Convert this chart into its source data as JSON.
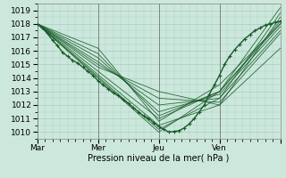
{
  "xlabel": "Pression niveau de la mer( hPa )",
  "xlim": [
    0,
    96
  ],
  "ylim": [
    1009.5,
    1019.5
  ],
  "yticks": [
    1010,
    1011,
    1012,
    1013,
    1014,
    1015,
    1016,
    1017,
    1018,
    1019
  ],
  "xtick_positions": [
    0,
    24,
    48,
    72,
    96
  ],
  "xtick_labels": [
    "Mar",
    "Mer",
    "Jeu",
    "Ven",
    ""
  ],
  "bg_color": "#cce8dd",
  "grid_color": "#aaccbb",
  "line_color": "#1a5c2a",
  "main_line": {
    "x": [
      0,
      2,
      4,
      6,
      8,
      10,
      12,
      14,
      16,
      18,
      20,
      22,
      24,
      26,
      28,
      30,
      32,
      34,
      36,
      38,
      40,
      42,
      44,
      46,
      48,
      50,
      52,
      54,
      56,
      58,
      60,
      62,
      64,
      66,
      68,
      70,
      72,
      74,
      76,
      78,
      80,
      82,
      84,
      86,
      88,
      90,
      92,
      94,
      96
    ],
    "y": [
      1018.0,
      1017.7,
      1017.3,
      1016.8,
      1016.4,
      1015.9,
      1015.6,
      1015.3,
      1015.1,
      1014.8,
      1014.5,
      1014.2,
      1013.8,
      1013.5,
      1013.2,
      1012.9,
      1012.7,
      1012.4,
      1012.1,
      1011.8,
      1011.5,
      1011.2,
      1011.0,
      1010.7,
      1010.4,
      1010.2,
      1010.0,
      1010.05,
      1010.1,
      1010.3,
      1010.6,
      1011.0,
      1011.5,
      1012.0,
      1012.8,
      1013.5,
      1014.2,
      1015.0,
      1015.6,
      1016.1,
      1016.5,
      1016.9,
      1017.2,
      1017.5,
      1017.7,
      1017.9,
      1018.0,
      1018.1,
      1018.2
    ]
  },
  "ensemble_lines": [
    {
      "x": [
        0,
        48,
        72,
        96
      ],
      "y": [
        1018.0,
        1010.0,
        1013.0,
        1019.2
      ]
    },
    {
      "x": [
        0,
        48,
        72,
        96
      ],
      "y": [
        1018.0,
        1010.2,
        1012.5,
        1018.8
      ]
    },
    {
      "x": [
        0,
        48,
        72,
        96
      ],
      "y": [
        1018.0,
        1010.5,
        1012.0,
        1018.5
      ]
    },
    {
      "x": [
        0,
        48,
        72,
        96
      ],
      "y": [
        1018.0,
        1011.0,
        1013.0,
        1018.2
      ]
    },
    {
      "x": [
        0,
        24,
        48,
        72,
        96
      ],
      "y": [
        1018.0,
        1016.2,
        1010.8,
        1013.5,
        1018.0
      ]
    },
    {
      "x": [
        0,
        24,
        48,
        72,
        96
      ],
      "y": [
        1018.0,
        1015.8,
        1011.2,
        1013.0,
        1018.0
      ]
    },
    {
      "x": [
        0,
        24,
        48,
        72,
        96
      ],
      "y": [
        1018.0,
        1015.5,
        1011.5,
        1012.8,
        1017.8
      ]
    },
    {
      "x": [
        0,
        24,
        48,
        72,
        96
      ],
      "y": [
        1018.0,
        1015.2,
        1012.0,
        1012.5,
        1017.5
      ]
    },
    {
      "x": [
        0,
        24,
        48,
        72,
        96
      ],
      "y": [
        1018.0,
        1015.0,
        1012.5,
        1012.2,
        1017.3
      ]
    },
    {
      "x": [
        0,
        24,
        48,
        72,
        96
      ],
      "y": [
        1018.0,
        1014.8,
        1013.0,
        1012.0,
        1016.2
      ]
    }
  ]
}
